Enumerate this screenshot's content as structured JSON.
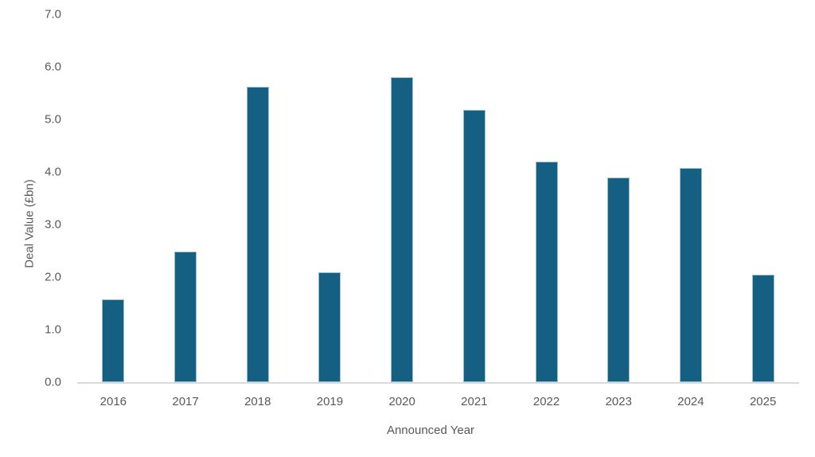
{
  "chart_data": {
    "type": "bar",
    "title": "",
    "categories": [
      "2016",
      "2017",
      "2018",
      "2019",
      "2020",
      "2021",
      "2022",
      "2023",
      "2024",
      "2025"
    ],
    "values": [
      1.57,
      2.48,
      5.62,
      2.09,
      5.8,
      5.18,
      4.2,
      3.89,
      4.08,
      2.04
    ],
    "xlabel": "Announced Year",
    "ylabel": "Deal Value (£bn)",
    "ylim": [
      0,
      7
    ],
    "y_tick_values": [
      0,
      1,
      2,
      3,
      4,
      5,
      6,
      7
    ],
    "y_tick_labels": [
      "0.0",
      "1.0",
      "2.0",
      "3.0",
      "4.0",
      "5.0",
      "6.0",
      "7.0"
    ],
    "grid": false,
    "legend_position": "none",
    "colors": {
      "bar_fill": "#156082",
      "bar_border": "#9DBECD",
      "axis_line": "#D9D9D9",
      "text": "#595959"
    }
  }
}
